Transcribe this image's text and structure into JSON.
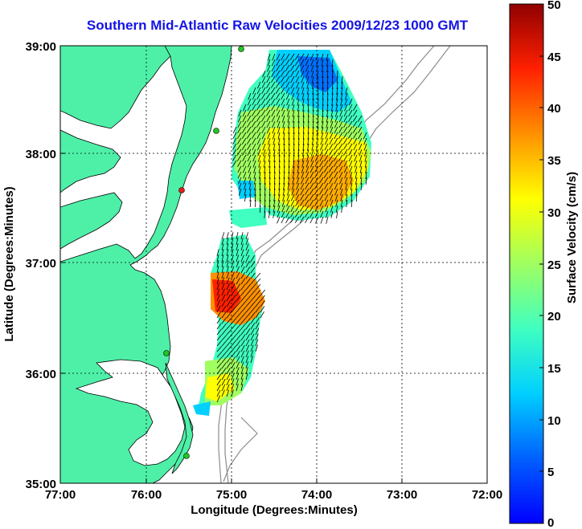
{
  "title": "Southern Mid-Atlantic Raw Velocities 2009/12/23 1000 GMT",
  "xlabel": "Longitude (Degrees:Minutes)",
  "ylabel": "Latitude (Degrees:Minutes)",
  "x_ticks": [
    "77:00",
    "76:00",
    "75:00",
    "74:00",
    "73:00",
    "72:00"
  ],
  "y_ticks": [
    "39:00",
    "38:00",
    "37:00",
    "36:00",
    "35:00"
  ],
  "colorbar": {
    "label": "Surface Velocity (cm/s)",
    "ticks": [
      "0",
      "5",
      "10",
      "15",
      "20",
      "25",
      "30",
      "35",
      "40",
      "45",
      "50"
    ],
    "min": 0,
    "max": 50
  },
  "colors": {
    "land": "#4ef0a8",
    "ocean": "#ffffff",
    "bathymetry": "#8c8c8c",
    "title": "#1414e6",
    "station_green": "#22c522",
    "station_red": "#e02020"
  }
}
